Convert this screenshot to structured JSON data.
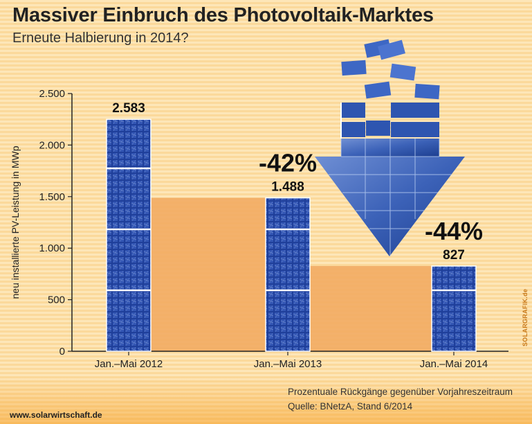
{
  "header": {
    "title": "Massiver Einbruch des Photovoltaik-Marktes",
    "subtitle": "Erneute Halbierung in 2014?"
  },
  "chart_data": {
    "type": "bar",
    "categories": [
      "Jan.–Mai 2012",
      "Jan.–Mai 2013",
      "Jan.–Mai 2014"
    ],
    "values": [
      2583,
      1488,
      827
    ],
    "value_labels": [
      "2.583",
      "1.488",
      "827"
    ],
    "changes": [
      "",
      "-42%",
      "-44%"
    ],
    "ylabel": "neu installierte PV-Leistung in MWp",
    "ylim": [
      0,
      2500
    ],
    "yticks": [
      0,
      500,
      1000,
      1500,
      2000,
      2500
    ],
    "ytick_labels": [
      "0",
      "500",
      "1.000",
      "1.500",
      "2.000",
      "2.500"
    ],
    "grid": false,
    "colors": {
      "panel": "#1f3f9a",
      "panel_light": "#4f74c8",
      "orange": "#f2ab63"
    }
  },
  "footer": {
    "note": "Prozentuale Rückgänge gegenüber Vorjahreszeitraum",
    "source": "Quelle: BNetzA, Stand 6/2014",
    "url": "www.solarwirtschaft.de",
    "credit": "SOLARGRAFIK.de"
  }
}
